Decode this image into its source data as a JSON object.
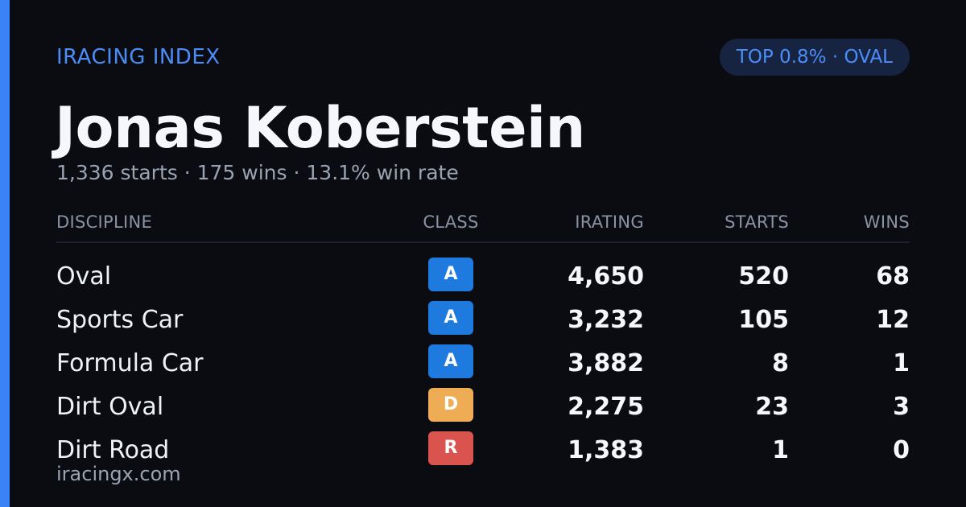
{
  "brand": "IRACING INDEX",
  "badge": "TOP 0.8% · OVAL",
  "driver": {
    "name": "Jonas Koberstein",
    "summary": "1,336 starts · 175 wins · 13.1% win rate"
  },
  "table": {
    "headers": {
      "discipline": "DISCIPLINE",
      "class": "CLASS",
      "irating": "IRATING",
      "starts": "STARTS",
      "wins": "WINS"
    },
    "rows": [
      {
        "discipline": "Oval",
        "class": "A",
        "class_color": "#1f7ae0",
        "irating": "4,650",
        "starts": "520",
        "wins": "68"
      },
      {
        "discipline": "Sports Car",
        "class": "A",
        "class_color": "#1f7ae0",
        "irating": "3,232",
        "starts": "105",
        "wins": "12"
      },
      {
        "discipline": "Formula Car",
        "class": "A",
        "class_color": "#1f7ae0",
        "irating": "3,882",
        "starts": "8",
        "wins": "1"
      },
      {
        "discipline": "Dirt Oval",
        "class": "D",
        "class_color": "#eeac55",
        "irating": "2,275",
        "starts": "23",
        "wins": "3"
      },
      {
        "discipline": "Dirt Road",
        "class": "R",
        "class_color": "#d9534f",
        "irating": "1,383",
        "starts": "1",
        "wins": "0"
      }
    ]
  },
  "footer": "iracingx.com",
  "colors": {
    "background": "#0a0c12",
    "accent": "#3b82f6",
    "brand_text": "#4b8df8",
    "badge_bg": "#172441",
    "muted_text": "#9aa3b2"
  }
}
